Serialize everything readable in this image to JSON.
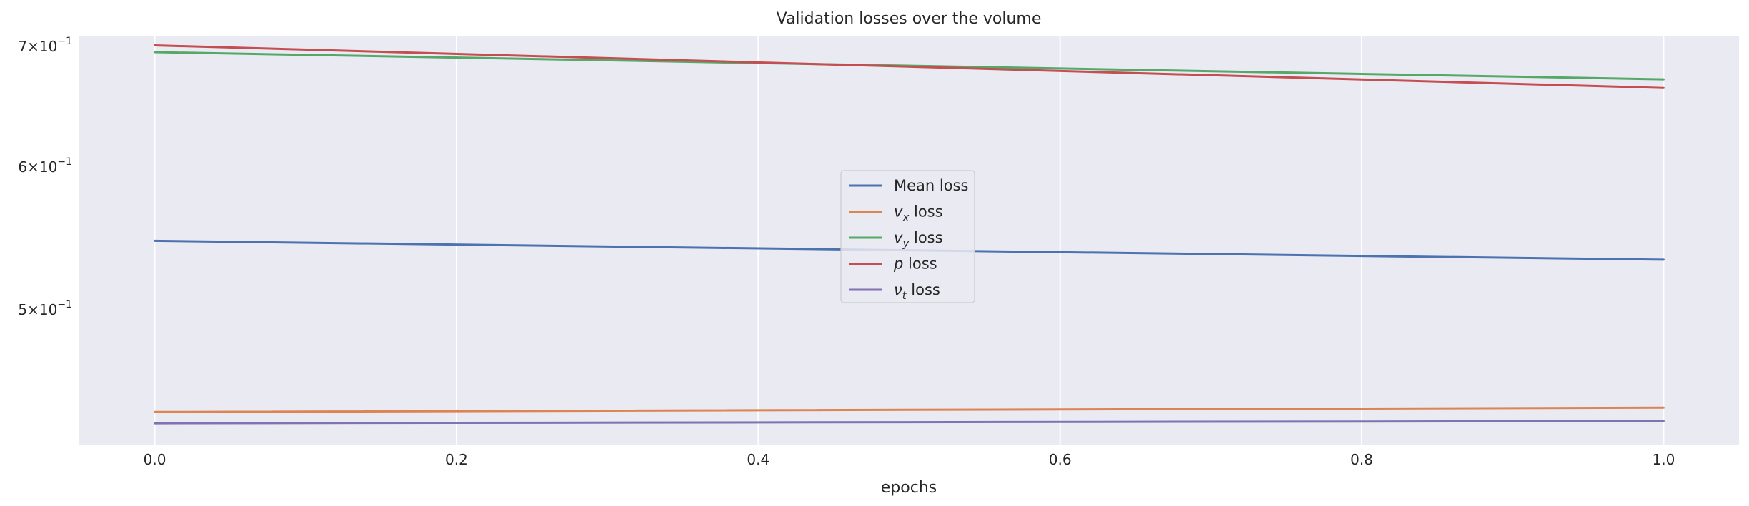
{
  "chart_data": {
    "type": "line",
    "title": "Validation losses over the volume",
    "xlabel": "epochs",
    "ylabel": "",
    "x": [
      0.0,
      1.0
    ],
    "xlim": [
      -0.05,
      1.05
    ],
    "xticks": [
      0.0,
      0.2,
      0.4,
      0.6,
      0.8,
      1.0
    ],
    "xtick_labels": [
      "0.0",
      "0.2",
      "0.4",
      "0.6",
      "0.8",
      "1.0"
    ],
    "yscale": "log",
    "ylim": [
      0.4205,
      0.7095
    ],
    "yticks": [
      0.5,
      0.6,
      0.7
    ],
    "ytick_labels": [
      {
        "mantissa": "5",
        "base": "10",
        "exp": "−1"
      },
      {
        "mantissa": "6",
        "base": "10",
        "exp": "−1"
      },
      {
        "mantissa": "7",
        "base": "10",
        "exp": "−1"
      }
    ],
    "grid": true,
    "legend_position": "center",
    "series": [
      {
        "name": "Mean loss",
        "label_main": "Mean loss",
        "label_sub": "",
        "label_rest": "",
        "color": "#4c72b0",
        "values": [
          0.546,
          0.533
        ]
      },
      {
        "name": "vx loss",
        "label_main": "v",
        "label_sub": "x",
        "label_rest": " loss",
        "color": "#dd8452",
        "values": [
          0.4388,
          0.4412
        ]
      },
      {
        "name": "vy loss",
        "label_main": "v",
        "label_sub": "y",
        "label_rest": " loss",
        "color": "#55a868",
        "values": [
          0.6948,
          0.6711
        ]
      },
      {
        "name": "p loss",
        "label_main": "p",
        "label_sub": "",
        "label_rest": " loss",
        "color": "#c44e52",
        "values": [
          0.7008,
          0.6637
        ]
      },
      {
        "name": "νt loss",
        "label_main": "ν",
        "label_sub": "t",
        "label_rest": " loss",
        "color": "#8172b3",
        "values": [
          0.4325,
          0.4337
        ]
      }
    ]
  }
}
